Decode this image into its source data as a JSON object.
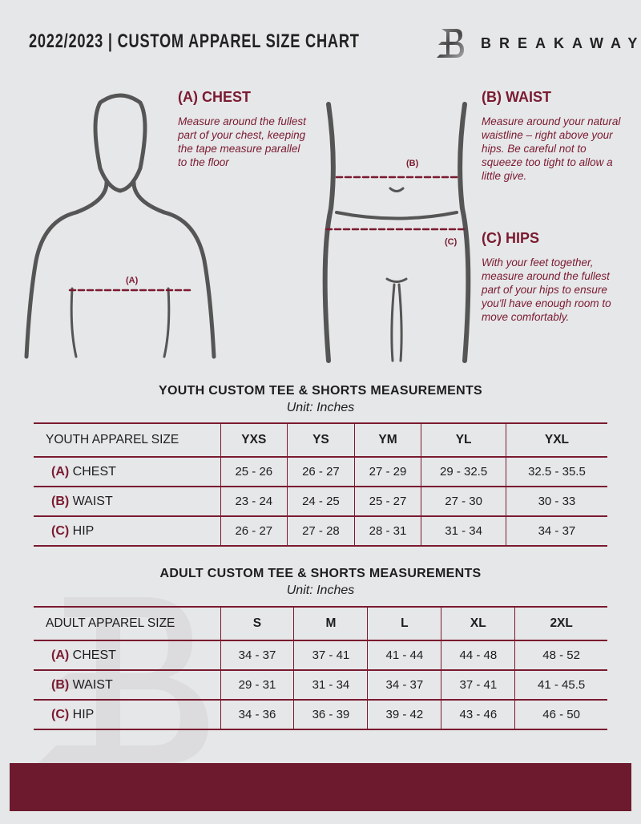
{
  "header": {
    "title": "2022/2023  |  CUSTOM APPAREL SIZE CHART",
    "brand": "BREAKAWAY",
    "logo_letter": "B"
  },
  "instructions": {
    "chest": {
      "heading": "(A) CHEST",
      "text": "Measure around the fullest part of your chest, keeping the tape measure parallel to the floor",
      "marker": "(A)"
    },
    "waist": {
      "heading": "(B) WAIST",
      "text": "Measure around your natural waistline – right above your hips. Be careful not to squeeze too tight to allow a little give.",
      "marker": "(B)"
    },
    "hips": {
      "heading": "(C) HIPS",
      "text": "With your feet together, measure around the fullest part of your hips to ensure you'll have enough room to move comfortably.",
      "marker": "(C)"
    }
  },
  "youth": {
    "title": "YOUTH CUSTOM TEE & SHORTS MEASUREMENTS",
    "unit": "Unit: Inches",
    "header": [
      "YOUTH APPAREL SIZE",
      "YXS",
      "YS",
      "YM",
      "YL",
      "YXL"
    ],
    "rows": [
      {
        "code": "(A)",
        "name": "CHEST",
        "values": [
          "25 - 26",
          "26 - 27",
          "27 - 29",
          "29 - 32.5",
          "32.5 - 35.5"
        ]
      },
      {
        "code": "(B)",
        "name": "WAIST",
        "values": [
          "23 - 24",
          "24 - 25",
          "25 - 27",
          "27 - 30",
          "30 - 33"
        ]
      },
      {
        "code": "(C)",
        "name": "HIP",
        "values": [
          "26 - 27",
          "27 - 28",
          "28 - 31",
          "31 - 34",
          "34 - 37"
        ]
      }
    ]
  },
  "adult": {
    "title": "ADULT CUSTOM TEE & SHORTS MEASUREMENTS",
    "unit": "Unit: Inches",
    "header": [
      "ADULT APPAREL SIZE",
      "S",
      "M",
      "L",
      "XL",
      "2XL"
    ],
    "rows": [
      {
        "code": "(A)",
        "name": "CHEST",
        "values": [
          "34 - 37",
          "37 - 41",
          "41 - 44",
          "44 - 48",
          "48 - 52"
        ]
      },
      {
        "code": "(B)",
        "name": "WAIST",
        "values": [
          "29 - 31",
          "31 - 34",
          "34 - 37",
          "37 - 41",
          "41 - 45.5"
        ]
      },
      {
        "code": "(C)",
        "name": "HIP",
        "values": [
          "34 - 36",
          "36 - 39",
          "39 - 42",
          "43 - 46",
          "46 - 50"
        ]
      }
    ]
  },
  "colors": {
    "accent": "#7a1a30",
    "footer": "#6e1a2e",
    "background": "#e6e7e9"
  }
}
